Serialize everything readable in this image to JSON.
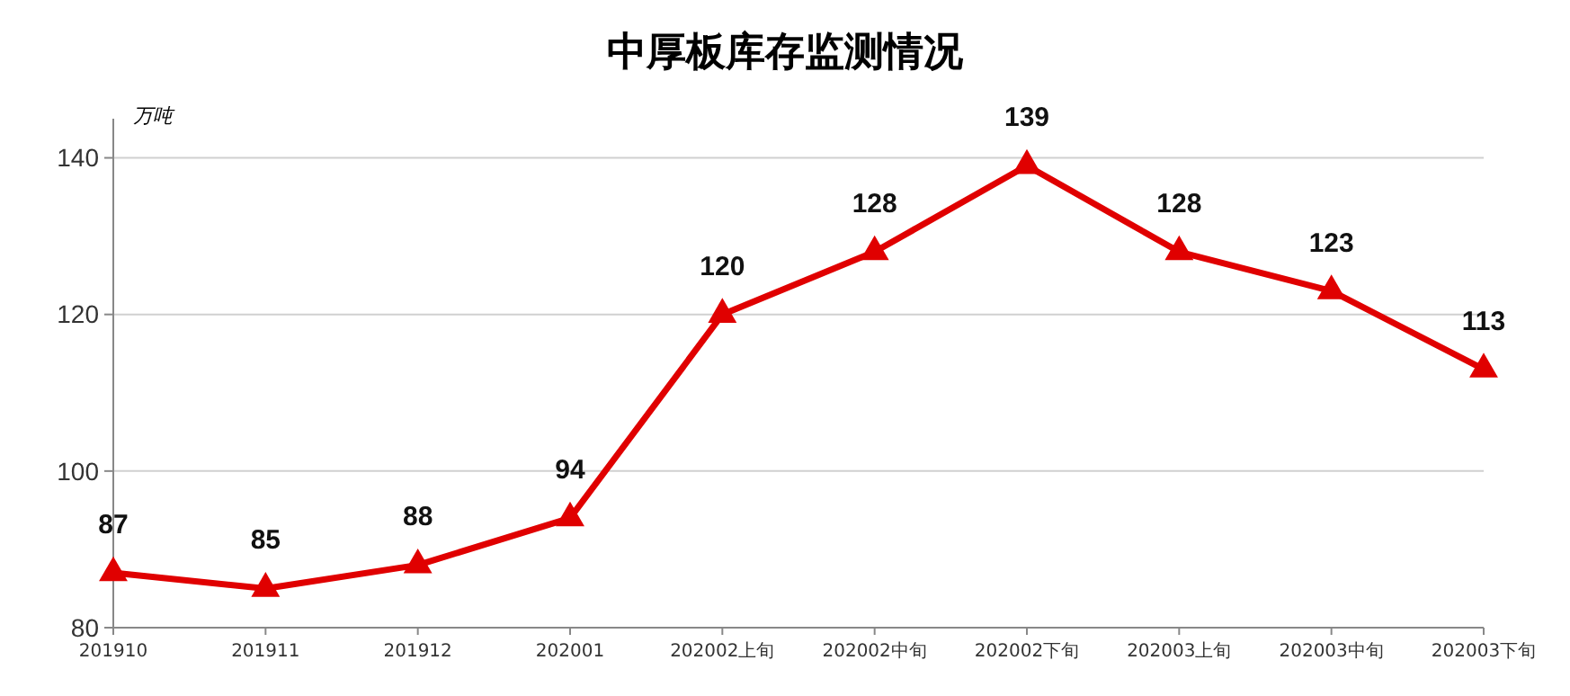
{
  "chart_data": {
    "type": "line",
    "title": "中厚板库存监测情况",
    "ylabel": "万吨",
    "categories": [
      "201910",
      "201911",
      "201912",
      "202001",
      "202002上旬",
      "202002中旬",
      "202002下旬",
      "202003上旬",
      "202003中旬",
      "202003下旬"
    ],
    "series": [
      {
        "color": "#e00000",
        "values": [
          87,
          85,
          88,
          94,
          120,
          128,
          139,
          128,
          123,
          113
        ]
      }
    ],
    "ylim": [
      80,
      145
    ],
    "yticks": [
      80,
      100,
      120,
      140
    ],
    "grid": "y",
    "marker": "triangle",
    "line_style": "solid",
    "data_labels": true
  }
}
